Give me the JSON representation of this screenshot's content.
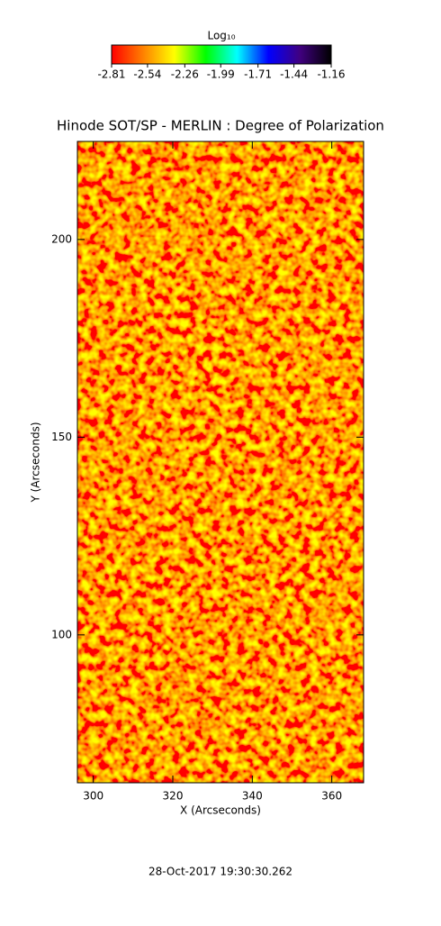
{
  "chart_data": {
    "type": "heatmap",
    "title": "Hinode SOT/SP - MERLIN : Degree of Polarization",
    "x_label": "X (Arcseconds)",
    "y_label": "Y (Arcseconds)",
    "xlim": [
      296,
      368
    ],
    "xticks": [
      300,
      320,
      340,
      360
    ],
    "ylim": [
      62.6,
      224.8
    ],
    "yticks": [
      100,
      150,
      200
    ],
    "colorbar": {
      "label": "Log₁₀",
      "clim": [
        -2.81,
        -1.16
      ],
      "ticks": [
        -2.81,
        -2.54,
        -2.26,
        -1.99,
        -1.71,
        -1.44,
        -1.16
      ],
      "colors": [
        "#ff0000",
        "#ff8000",
        "#ffff00",
        "#00ff00",
        "#00ffff",
        "#0000ff",
        "#400080",
        "#000000"
      ]
    },
    "footer": "28-Oct-2017 19:30:30.262"
  }
}
